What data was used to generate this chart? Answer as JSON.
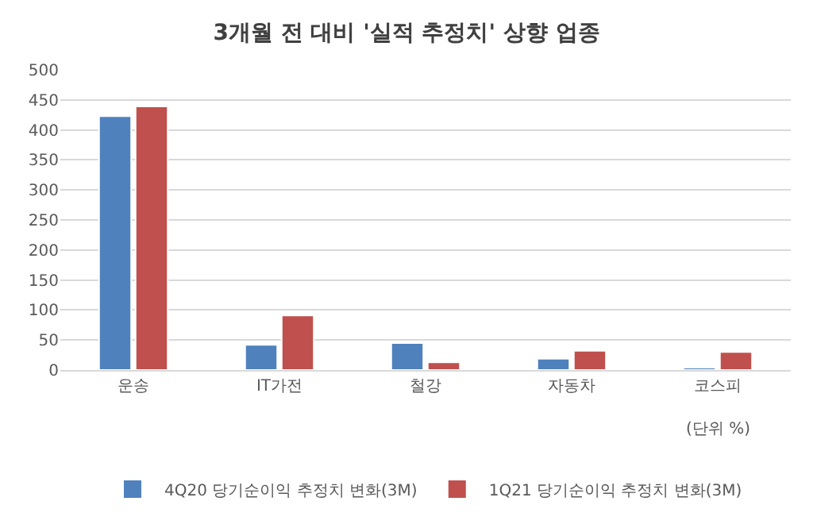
{
  "chart_data": {
    "type": "bar",
    "title": "3개월 전 대비 '실적 추정치' 상향 업종",
    "categories": [
      "운송",
      "IT가전",
      "철강",
      "자동차",
      "코스피"
    ],
    "series": [
      {
        "name": "4Q20 당기순이익 추정치 변화(3M)",
        "color": "#4f81bd",
        "values": [
          423,
          42,
          45,
          19,
          4
        ]
      },
      {
        "name": "1Q21 당기순이익 추정치 변화(3M)",
        "color": "#c0504d",
        "values": [
          439,
          91,
          13,
          32,
          30
        ]
      }
    ],
    "ylim": [
      0,
      500
    ],
    "yticks": [
      0,
      50,
      100,
      150,
      200,
      250,
      300,
      350,
      400,
      450,
      500
    ],
    "grid": "y",
    "legend": "bottom",
    "annotations": [
      "(단위 %)"
    ]
  }
}
